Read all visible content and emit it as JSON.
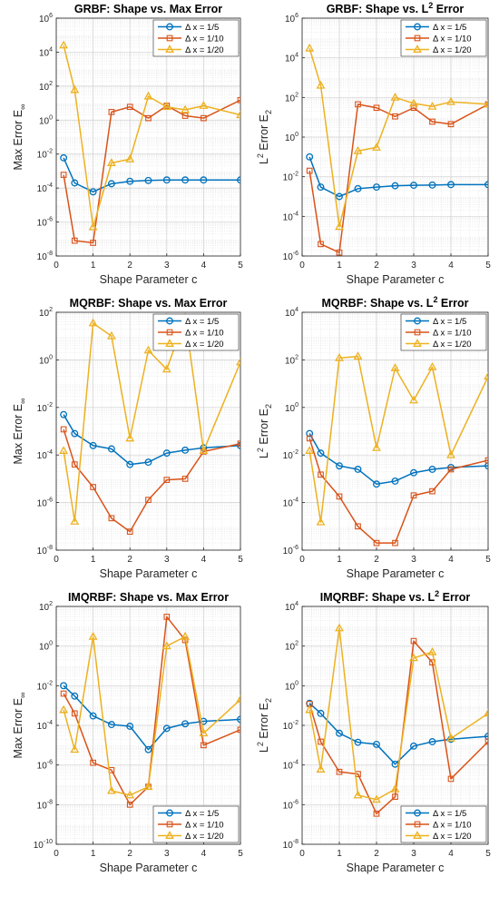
{
  "colors": {
    "blue": "#0072BD",
    "orange": "#D95319",
    "yellow": "#EDB120"
  },
  "chart_data": [
    {
      "type": "line",
      "title": "GRBF: Shape vs. Max Error",
      "xlabel": "Shape Parameter c",
      "ylabel": "Max Error E",
      "ylabel_sub": "∞",
      "xlim": [
        0,
        5
      ],
      "ylim": [
        1e-08,
        1000000.0
      ],
      "yscale": "log",
      "grid": true,
      "legend_position": "top-right",
      "x_ticks": [
        0,
        1,
        2,
        3,
        4,
        5
      ],
      "y_tick_exponents": [
        -8,
        -6,
        -4,
        -2,
        0,
        2,
        4,
        6
      ],
      "series": [
        {
          "name": "Δ x = 1/5",
          "color": "#0072BD",
          "marker": "circle",
          "x": [
            0.2,
            0.5,
            1.0,
            1.5,
            2.0,
            2.5,
            3.0,
            3.5,
            4.0,
            5.0
          ],
          "y": [
            0.006,
            0.0002,
            6e-05,
            0.00018,
            0.00025,
            0.00028,
            0.0003,
            0.0003,
            0.0003,
            0.0003
          ]
        },
        {
          "name": "Δ x = 1/10",
          "color": "#D95319",
          "marker": "square",
          "x": [
            0.2,
            0.5,
            1.0,
            1.5,
            2.0,
            2.5,
            3.0,
            3.5,
            4.0,
            5.0
          ],
          "y": [
            0.0006,
            8e-08,
            6e-08,
            3,
            6,
            1.3,
            7,
            1.8,
            1.3,
            15
          ]
        },
        {
          "name": "Δ x = 1/20",
          "color": "#EDB120",
          "marker": "triangle",
          "x": [
            0.2,
            0.5,
            1.0,
            1.5,
            2.0,
            2.5,
            3.0,
            3.5,
            4.0,
            5.0
          ],
          "y": [
            25000,
            60,
            5e-07,
            0.003,
            0.005,
            25,
            6,
            4,
            7,
            2
          ]
        }
      ]
    },
    {
      "type": "line",
      "title": "GRBF: Shape vs. L",
      "title_sup": "2",
      "title_suffix": " Error",
      "xlabel": "Shape Parameter c",
      "ylabel": "L",
      "ylabel_sup": "2",
      "ylabel_suffix": " Error E",
      "ylabel_sub": "2",
      "xlim": [
        0,
        5
      ],
      "ylim": [
        1e-06,
        1000000.0
      ],
      "yscale": "log",
      "grid": true,
      "legend_position": "top-right",
      "x_ticks": [
        0,
        1,
        2,
        3,
        4,
        5
      ],
      "y_tick_exponents": [
        -6,
        -4,
        -2,
        0,
        2,
        4,
        6
      ],
      "series": [
        {
          "name": "Δ x = 1/5",
          "color": "#0072BD",
          "marker": "circle",
          "x": [
            0.2,
            0.5,
            1.0,
            1.5,
            2.0,
            2.5,
            3.0,
            3.5,
            4.0,
            5.0
          ],
          "y": [
            0.1,
            0.003,
            0.001,
            0.0025,
            0.003,
            0.0035,
            0.0037,
            0.0038,
            0.004,
            0.004
          ]
        },
        {
          "name": "Δ x = 1/10",
          "color": "#D95319",
          "marker": "square",
          "x": [
            0.2,
            0.5,
            1.0,
            1.5,
            2.0,
            2.5,
            3.0,
            3.5,
            4.0,
            5.0
          ],
          "y": [
            0.02,
            4e-06,
            1.5e-06,
            45,
            30,
            11,
            30,
            6,
            4.5,
            45
          ]
        },
        {
          "name": "Δ x = 1/20",
          "color": "#EDB120",
          "marker": "triangle",
          "x": [
            0.2,
            0.5,
            1.0,
            1.5,
            2.0,
            2.5,
            3.0,
            3.5,
            4.0,
            5.0
          ],
          "y": [
            30000,
            400,
            3e-05,
            0.2,
            0.3,
            100,
            50,
            35,
            60,
            45
          ]
        }
      ]
    },
    {
      "type": "line",
      "title": "MQRBF: Shape vs. Max Error",
      "xlabel": "Shape Parameter c",
      "ylabel": "Max Error E",
      "ylabel_sub": "∞",
      "xlim": [
        0,
        5
      ],
      "ylim": [
        1e-08,
        100
      ],
      "yscale": "log",
      "grid": true,
      "legend_position": "top-right",
      "x_ticks": [
        0,
        1,
        2,
        3,
        4,
        5
      ],
      "y_tick_exponents": [
        -8,
        -6,
        -4,
        -2,
        0,
        2
      ],
      "series": [
        {
          "name": "Δ x = 1/5",
          "color": "#0072BD",
          "marker": "circle",
          "x": [
            0.2,
            0.5,
            1.0,
            1.5,
            2.0,
            2.5,
            3.0,
            3.5,
            4.0,
            5.0
          ],
          "y": [
            0.005,
            0.0008,
            0.00025,
            0.00018,
            4e-05,
            5e-05,
            0.00012,
            0.00016,
            0.0002,
            0.00025
          ]
        },
        {
          "name": "Δ x = 1/10",
          "color": "#D95319",
          "marker": "square",
          "x": [
            0.2,
            0.5,
            1.0,
            1.5,
            2.0,
            2.5,
            3.0,
            3.5,
            4.0,
            5.0
          ],
          "y": [
            0.0012,
            4e-05,
            4.5e-06,
            2.2e-07,
            6e-08,
            1.3e-06,
            9e-06,
            1e-05,
            0.00014,
            0.0003
          ]
        },
        {
          "name": "Δ x = 1/20",
          "color": "#EDB120",
          "marker": "triangle",
          "x": [
            0.2,
            0.5,
            1.0,
            1.5,
            2.0,
            2.5,
            3.0,
            3.5,
            4.0,
            5.0
          ],
          "y": [
            0.00015,
            1.6e-07,
            35,
            10,
            0.0005,
            2.5,
            0.4,
            60,
            0.00015,
            0.8
          ]
        }
      ]
    },
    {
      "type": "line",
      "title": "MQRBF: Shape vs. L",
      "title_sup": "2",
      "title_suffix": " Error",
      "xlabel": "Shape Parameter c",
      "ylabel": "L",
      "ylabel_sup": "2",
      "ylabel_suffix": " Error E",
      "ylabel_sub": "2",
      "xlim": [
        0,
        5
      ],
      "ylim": [
        1e-06,
        10000
      ],
      "yscale": "log",
      "grid": true,
      "legend_position": "top-right",
      "x_ticks": [
        0,
        1,
        2,
        3,
        4,
        5
      ],
      "y_tick_exponents": [
        -6,
        -4,
        -2,
        0,
        2,
        4
      ],
      "series": [
        {
          "name": "Δ x = 1/5",
          "color": "#0072BD",
          "marker": "circle",
          "x": [
            0.2,
            0.5,
            1.0,
            1.5,
            2.0,
            2.5,
            3.0,
            3.5,
            4.0,
            5.0
          ],
          "y": [
            0.08,
            0.012,
            0.0035,
            0.0025,
            0.0006,
            0.0008,
            0.0018,
            0.0025,
            0.003,
            0.0035
          ]
        },
        {
          "name": "Δ x = 1/10",
          "color": "#D95319",
          "marker": "square",
          "x": [
            0.2,
            0.5,
            1.0,
            1.5,
            2.0,
            2.5,
            3.0,
            3.5,
            4.0,
            5.0
          ],
          "y": [
            0.05,
            0.0015,
            0.00018,
            1e-05,
            2e-06,
            2e-06,
            0.0002,
            0.0003,
            0.0025,
            0.006
          ]
        },
        {
          "name": "Δ x = 1/20",
          "color": "#EDB120",
          "marker": "triangle",
          "x": [
            0.2,
            0.5,
            1.0,
            1.5,
            2.0,
            2.5,
            3.0,
            3.5,
            4.0,
            5.0
          ],
          "y": [
            0.015,
            1.5e-05,
            120,
            140,
            0.02,
            45,
            2,
            50,
            0.01,
            20
          ]
        }
      ]
    },
    {
      "type": "line",
      "title": "IMQRBF: Shape vs. Max Error",
      "xlabel": "Shape Parameter c",
      "ylabel": "Max Error E",
      "ylabel_sub": "∞",
      "xlim": [
        0,
        5
      ],
      "ylim": [
        1e-10,
        100
      ],
      "yscale": "log",
      "grid": true,
      "legend_position": "bottom-right",
      "x_ticks": [
        0,
        1,
        2,
        3,
        4,
        5
      ],
      "y_tick_exponents": [
        -10,
        -8,
        -6,
        -4,
        -2,
        0,
        2
      ],
      "series": [
        {
          "name": "Δ x = 1/5",
          "color": "#0072BD",
          "marker": "circle",
          "x": [
            0.2,
            0.5,
            1.0,
            1.5,
            2.0,
            2.5,
            3.0,
            3.5,
            4.0,
            5.0
          ],
          "y": [
            0.01,
            0.003,
            0.0003,
            0.00011,
            9e-05,
            6e-06,
            7e-05,
            0.00012,
            0.00016,
            0.0002
          ]
        },
        {
          "name": "Δ x = 1/10",
          "color": "#D95319",
          "marker": "square",
          "x": [
            0.2,
            0.5,
            1.0,
            1.5,
            2.0,
            2.5,
            3.0,
            3.5,
            4.0,
            5.0
          ],
          "y": [
            0.004,
            0.0004,
            1.3e-06,
            5.5e-07,
            1e-08,
            8e-08,
            30,
            2,
            1e-05,
            6e-05
          ]
        },
        {
          "name": "Δ x = 1/20",
          "color": "#EDB120",
          "marker": "triangle",
          "x": [
            0.2,
            0.5,
            1.0,
            1.5,
            2.0,
            2.5,
            3.0,
            3.5,
            4.0,
            5.0
          ],
          "y": [
            0.0006,
            6e-06,
            3,
            5e-08,
            3e-08,
            8e-08,
            1,
            3,
            4e-05,
            0.002
          ]
        }
      ]
    },
    {
      "type": "line",
      "title": "IMQRBF: Shape vs. L",
      "title_sup": "2",
      "title_suffix": " Error",
      "xlabel": "Shape Parameter c",
      "ylabel": "L",
      "ylabel_sup": "2",
      "ylabel_suffix": " Error E",
      "ylabel_sub": "2",
      "xlim": [
        0,
        5
      ],
      "ylim": [
        1e-08,
        10000
      ],
      "yscale": "log",
      "grid": true,
      "legend_position": "bottom-right",
      "x_ticks": [
        0,
        1,
        2,
        3,
        4,
        5
      ],
      "y_tick_exponents": [
        -8,
        -6,
        -4,
        -2,
        0,
        2,
        4
      ],
      "series": [
        {
          "name": "Δ x = 1/5",
          "color": "#0072BD",
          "marker": "circle",
          "x": [
            0.2,
            0.5,
            1.0,
            1.5,
            2.0,
            2.5,
            3.0,
            3.5,
            4.0,
            5.0
          ],
          "y": [
            0.13,
            0.04,
            0.004,
            0.0014,
            0.0011,
            0.00011,
            0.0009,
            0.0015,
            0.002,
            0.0028
          ]
        },
        {
          "name": "Δ x = 1/10",
          "color": "#D95319",
          "marker": "square",
          "x": [
            0.2,
            0.5,
            1.0,
            1.5,
            2.0,
            2.5,
            3.0,
            3.5,
            4.0,
            5.0
          ],
          "y": [
            0.12,
            0.0015,
            4.5e-05,
            3.5e-05,
            3.5e-07,
            2.5e-06,
            180,
            15,
            2e-05,
            0.0015
          ]
        },
        {
          "name": "Δ x = 1/20",
          "color": "#EDB120",
          "marker": "triangle",
          "x": [
            0.2,
            0.5,
            1.0,
            1.5,
            2.0,
            2.5,
            3.0,
            3.5,
            4.0,
            5.0
          ],
          "y": [
            0.06,
            6e-05,
            800,
            3e-06,
            1.8e-06,
            6e-06,
            25,
            50,
            0.0022,
            0.04
          ]
        }
      ]
    }
  ]
}
